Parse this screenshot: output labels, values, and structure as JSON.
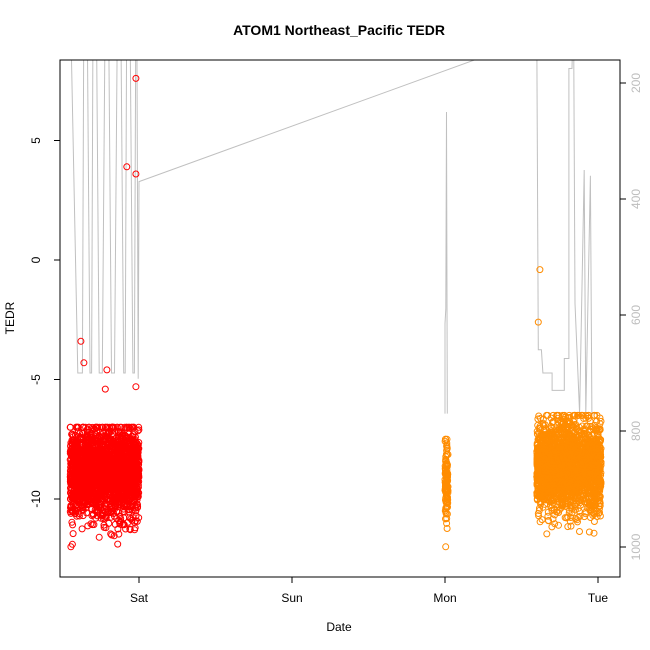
{
  "chart_data": {
    "type": "scatter",
    "title": "ATOM1 Northeast_Pacific TEDR",
    "xlabel": "Date",
    "ylabel": "TEDR",
    "y_right_label": "",
    "x_ticks": [
      "Sat",
      "Sun",
      "Mon",
      "Tue"
    ],
    "y_left_ticks": [
      -10,
      -5,
      0,
      5
    ],
    "y_right_ticks": [
      200,
      400,
      600,
      800,
      1000
    ],
    "ylim": [
      -13,
      8.5
    ],
    "y_right_lim": [
      1000,
      200
    ],
    "colors": {
      "series_1": "#ff0000",
      "series_2": "#ff8c00",
      "line": "#c0c0c0",
      "axis": "#000000",
      "right_axis": "#bdbdbd"
    },
    "series": [
      {
        "name": "",
        "color": "#ff0000",
        "x_range_days": [
          -0.45,
          0.0
        ],
        "y_core_range": [
          -12.0,
          -7.0
        ],
        "outliers": [
          {
            "x": -0.38,
            "y": -3.4
          },
          {
            "x": -0.36,
            "y": -4.3
          },
          {
            "x": -0.21,
            "y": -4.6
          },
          {
            "x": -0.22,
            "y": -5.4
          },
          {
            "x": -0.08,
            "y": 3.9
          },
          {
            "x": -0.02,
            "y": 3.6
          },
          {
            "x": -0.02,
            "y": 7.6
          },
          {
            "x": -0.02,
            "y": -5.3
          }
        ]
      },
      {
        "name": "",
        "color": "#ff8c00",
        "x_range_days": [
          2.0,
          2.02
        ],
        "y_core_range": [
          -12.0,
          -7.5
        ],
        "outliers": []
      },
      {
        "name": "",
        "color": "#ff8c00",
        "x_range_days": [
          2.6,
          3.02
        ],
        "y_core_range": [
          -12.0,
          -6.5
        ],
        "outliers": [
          {
            "x": 2.62,
            "y": -0.4
          },
          {
            "x": 2.61,
            "y": -2.6
          }
        ]
      }
    ],
    "line_series": {
      "name": "",
      "color": "#c0c0c0",
      "points": [
        [
          -0.45,
          40
        ],
        [
          -0.4,
          700
        ],
        [
          -0.37,
          700
        ],
        [
          -0.36,
          40
        ],
        [
          -0.34,
          40
        ],
        [
          -0.32,
          700
        ],
        [
          -0.31,
          700
        ],
        [
          -0.3,
          40
        ],
        [
          -0.28,
          40
        ],
        [
          -0.26,
          700
        ],
        [
          -0.24,
          700
        ],
        [
          -0.22,
          40
        ],
        [
          -0.2,
          40
        ],
        [
          -0.18,
          700
        ],
        [
          -0.16,
          700
        ],
        [
          -0.14,
          40
        ],
        [
          -0.12,
          40
        ],
        [
          -0.1,
          700
        ],
        [
          -0.09,
          700
        ],
        [
          -0.08,
          40
        ],
        [
          -0.06,
          40
        ],
        [
          -0.04,
          700
        ],
        [
          -0.03,
          700
        ],
        [
          -0.02,
          40
        ],
        [
          -0.015,
          40
        ],
        [
          -0.005,
          710
        ],
        [
          0.0,
          370
        ],
        [
          2.3,
          150
        ],
        [
          2.6,
          120
        ],
        [
          2.61,
          660
        ],
        [
          2.63,
          660
        ],
        [
          2.64,
          700
        ],
        [
          2.7,
          700
        ],
        [
          2.7,
          730
        ],
        [
          2.78,
          730
        ],
        [
          2.78,
          675
        ],
        [
          2.81,
          675
        ],
        [
          2.81,
          175
        ],
        [
          2.83,
          175
        ],
        [
          2.84,
          60
        ],
        [
          2.85,
          580
        ],
        [
          2.88,
          770
        ],
        [
          2.91,
          350
        ],
        [
          2.92,
          770
        ],
        [
          2.95,
          360
        ],
        [
          2.96,
          770
        ],
        [
          3.0,
          770
        ]
      ],
      "mon_segment": [
        [
          2.0,
          770
        ],
        [
          2.0,
          615
        ],
        [
          2.005,
          590
        ],
        [
          2.01,
          250
        ],
        [
          2.015,
          770
        ]
      ]
    },
    "seed_counts": {
      "series_1": 2400,
      "series_2a": 120,
      "series_2b": 2400
    },
    "legend": "none",
    "grid": false
  }
}
